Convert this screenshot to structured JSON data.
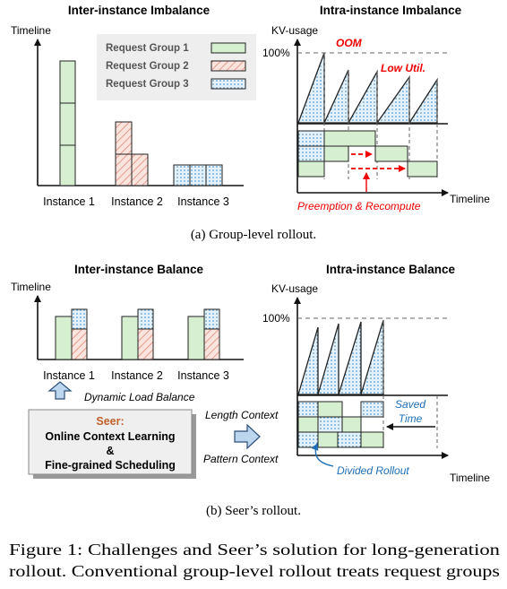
{
  "panel_a": {
    "left_title": "Inter-instance Imbalance",
    "right_title": "Intra-instance Imbalance",
    "left_ylabel": "Timeline",
    "right_ylabel": "KV-usage",
    "hundred_label": "100%",
    "oom_label": "OOM",
    "low_util_label": "Low Util.",
    "legend": [
      "Request Group 1",
      "Request Group 2",
      "Request Group 3"
    ],
    "instances": [
      "Instance 1",
      "Instance 2",
      "Instance 3"
    ],
    "preemption_label": "Preemption & Recompute",
    "right_xlabel": "Timeline",
    "caption": "(a) Group-level rollout."
  },
  "panel_b": {
    "left_title": "Inter-instance Balance",
    "right_title": "Intra-instance Balance",
    "left_ylabel": "Timeline",
    "right_ylabel": "KV-usage",
    "hundred_label": "100%",
    "instances": [
      "Instance 1",
      "Instance 2",
      "Instance 3"
    ],
    "dynamic_label": "Dynamic Load Balance",
    "seer_title": "Seer:",
    "seer_line1": "Online Context Learning",
    "seer_line2": "&",
    "seer_line3": "Fine-grained Scheduling",
    "length_context": "Length Context",
    "pattern_context": "Pattern Context",
    "saved_time_1": "Saved",
    "saved_time_2": "Time",
    "divided_rollout": "Divided Rollout",
    "right_xlabel": "Timeline",
    "caption": "(b) Seer’s rollout."
  },
  "figure_caption": {
    "line1": "Figure 1: Challenges and Seer’s solution for long-generation",
    "line2": "rollout. Conventional group-level rollout treats request groups"
  },
  "colors": {
    "green": "#d5efd0",
    "blue": "#d4eaf6",
    "pink": "#f4cfc6",
    "red": "#ee0000",
    "blue_text": "#1f6fb5",
    "seer_orange": "#c0602a",
    "legend_bg": "#eeeeee"
  }
}
